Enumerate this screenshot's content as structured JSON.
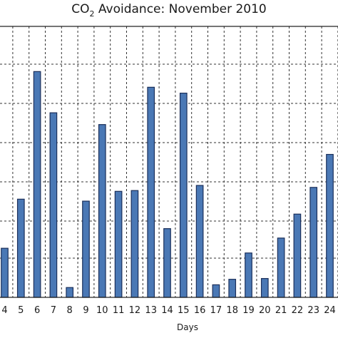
{
  "chart_data": {
    "type": "bar",
    "title": {
      "prefix": "CO",
      "subscript": "2",
      "suffix": " Avoidance: November 2010"
    },
    "xlabel": "Days",
    "ylabel": "",
    "categories": [
      "4",
      "5",
      "6",
      "7",
      "8",
      "9",
      "10",
      "11",
      "12",
      "13",
      "14",
      "15",
      "16",
      "17",
      "18",
      "19",
      "20",
      "21",
      "22",
      "23",
      "24"
    ],
    "values": [
      1.25,
      2.5,
      5.75,
      4.7,
      0.25,
      2.45,
      4.4,
      2.7,
      2.72,
      5.35,
      1.75,
      5.2,
      2.85,
      0.32,
      0.46,
      1.13,
      0.48,
      1.51,
      2.12,
      2.8,
      3.64
    ],
    "ylim": [
      0,
      6.9
    ],
    "grid": true,
    "bar_color": "#4a78b5",
    "bar_edge_color": "#1b2f5a"
  }
}
